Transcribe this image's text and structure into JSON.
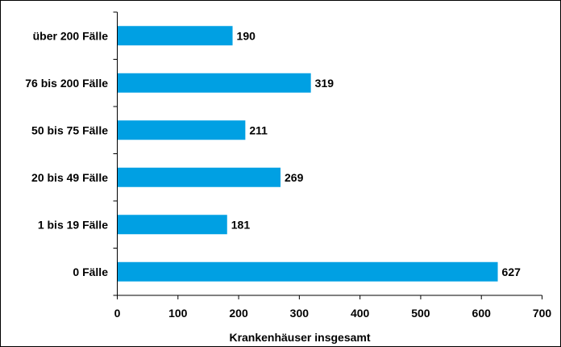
{
  "chart_data": {
    "type": "bar",
    "orientation": "horizontal",
    "categories": [
      "über 200 Fälle",
      "76 bis 200 Fälle",
      "50 bis 75 Fälle",
      "20 bis 49 Fälle",
      "1 bis 19 Fälle",
      "0 Fälle"
    ],
    "values": [
      190,
      319,
      211,
      269,
      181,
      627
    ],
    "xlabel": "Krankenhäuser insgesamt",
    "xlim": [
      0,
      700
    ],
    "xticks": [
      "0",
      "100",
      "200",
      "300",
      "400",
      "500",
      "600",
      "700"
    ],
    "bar_color": "#00a0e3",
    "grid": false,
    "legend": "none"
  }
}
